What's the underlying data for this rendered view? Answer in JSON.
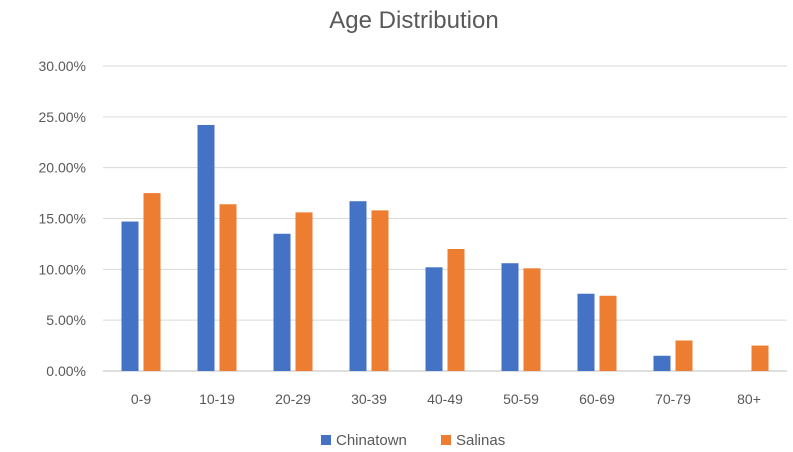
{
  "chart_data": {
    "type": "bar",
    "title": "Age Distribution",
    "xlabel": "",
    "ylabel": "",
    "categories": [
      "0-9",
      "10-19",
      "20-29",
      "30-39",
      "40-49",
      "50-59",
      "60-69",
      "70-79",
      "80+"
    ],
    "series": [
      {
        "name": "Chinatown",
        "color": "#4472C4",
        "values": [
          14.7,
          24.2,
          13.5,
          16.7,
          10.2,
          10.6,
          7.6,
          1.5,
          0.0
        ]
      },
      {
        "name": "Salinas",
        "color": "#ED7D31",
        "values": [
          17.5,
          16.4,
          15.6,
          15.8,
          12.0,
          10.1,
          7.4,
          3.0,
          2.5
        ]
      }
    ],
    "ylim": [
      0,
      30
    ],
    "yticks": [
      "0.00%",
      "5.00%",
      "10.00%",
      "15.00%",
      "20.00%",
      "25.00%",
      "30.00%"
    ],
    "grid": true,
    "legend_position": "bottom"
  }
}
